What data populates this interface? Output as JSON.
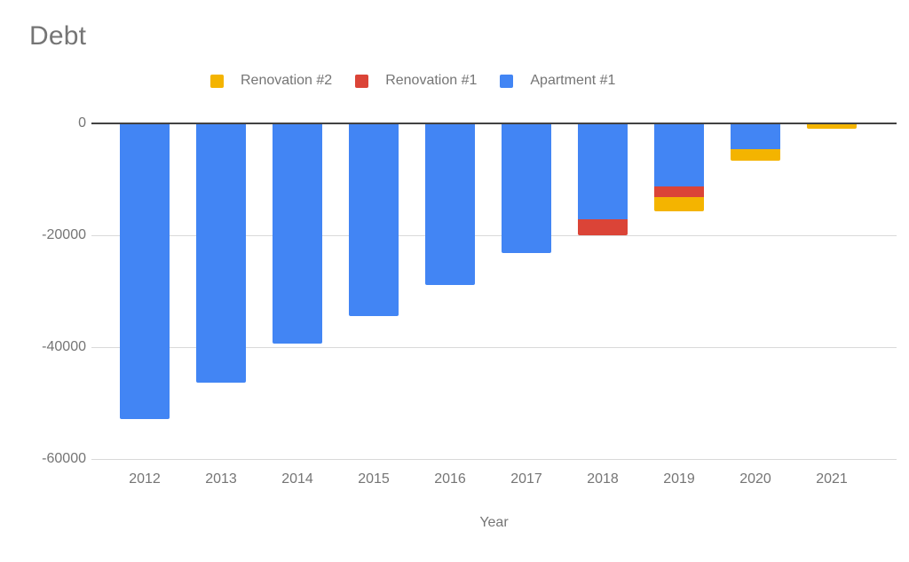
{
  "title": "Debt",
  "legend": [
    {
      "label": "Renovation #2",
      "color": "#F4B400"
    },
    {
      "label": "Renovation #1",
      "color": "#DB4437"
    },
    {
      "label": "Apartment #1",
      "color": "#4285F4"
    }
  ],
  "axes": {
    "x_title": "Year",
    "y_tick_labels": [
      "0",
      "-20000",
      "-40000",
      "-60000"
    ]
  },
  "colors": {
    "background": "#ffffff",
    "text": "#757575",
    "zero_axis": "#424242",
    "gridline": "#d9d9d9",
    "series_blue": "#4285F4",
    "series_red": "#DB4437",
    "series_yellow": "#F4B400"
  },
  "chart_data": {
    "type": "bar",
    "stacked": true,
    "orientation": "vertical",
    "title": "Debt",
    "xlabel": "Year",
    "ylabel": "",
    "ylim": [
      -60000,
      0
    ],
    "y_ticks": [
      0,
      -20000,
      -40000,
      -60000
    ],
    "grid": true,
    "legend_position": "top",
    "categories": [
      "2012",
      "2013",
      "2014",
      "2015",
      "2016",
      "2017",
      "2018",
      "2019",
      "2020",
      "2021"
    ],
    "series": [
      {
        "name": "Apartment #1",
        "color": "#4285F4",
        "values": [
          -52900,
          -46400,
          -39400,
          -34500,
          -28900,
          -23100,
          -17200,
          -11200,
          -4600,
          0
        ]
      },
      {
        "name": "Renovation #1",
        "color": "#DB4437",
        "values": [
          0,
          0,
          0,
          0,
          0,
          0,
          -2800,
          -2000,
          0,
          0
        ]
      },
      {
        "name": "Renovation #2",
        "color": "#F4B400",
        "values": [
          0,
          0,
          0,
          0,
          0,
          0,
          0,
          -2500,
          -2000,
          -1000
        ]
      }
    ],
    "totals": [
      -52900,
      -46400,
      -39400,
      -34500,
      -28900,
      -23100,
      -20000,
      -15700,
      -6600,
      -1000
    ]
  }
}
